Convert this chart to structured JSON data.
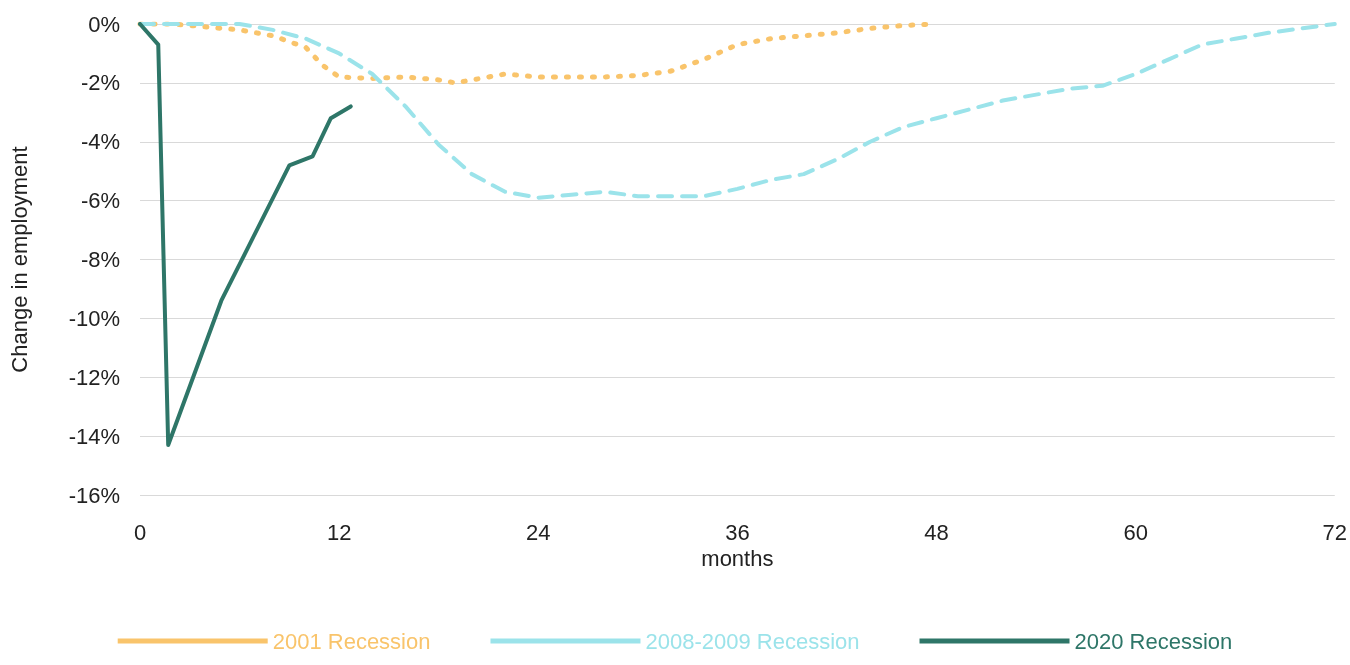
{
  "chart_data": {
    "type": "line",
    "xlabel": "months",
    "ylabel": "Change in employment",
    "xlim": [
      0,
      72
    ],
    "xticks": [
      0,
      12,
      24,
      36,
      48,
      60,
      72
    ],
    "ylim": [
      -16,
      0
    ],
    "yticks": [
      {
        "value": -16,
        "label": "-16%"
      },
      {
        "value": -14,
        "label": "-14%"
      },
      {
        "value": -12,
        "label": "-12%"
      },
      {
        "value": -10,
        "label": "-10%"
      },
      {
        "value": -8,
        "label": "-8%"
      },
      {
        "value": -6,
        "label": "-6%"
      },
      {
        "value": -4,
        "label": "-4%"
      },
      {
        "value": -2,
        "label": "-2%"
      },
      {
        "value": 0,
        "label": "0%"
      }
    ],
    "grid": "y",
    "legend": "bottom",
    "marker": "none",
    "series": [
      {
        "name": "2001 Recession",
        "color": "#f9c46b",
        "line_style": "dotted",
        "x": [
          0,
          2,
          4,
          6,
          8,
          10,
          11,
          12,
          14,
          16,
          18,
          19,
          20,
          21,
          22,
          24,
          26,
          28,
          30,
          32,
          34,
          36,
          38,
          40,
          42,
          44,
          46,
          48
        ],
        "values": [
          0,
          0,
          -0.1,
          -0.2,
          -0.4,
          -0.8,
          -1.4,
          -1.8,
          -1.85,
          -1.8,
          -1.9,
          -2.0,
          -1.9,
          -1.8,
          -1.7,
          -1.8,
          -1.8,
          -1.8,
          -1.75,
          -1.6,
          -1.2,
          -0.7,
          -0.5,
          -0.4,
          -0.3,
          -0.15,
          -0.05,
          0
        ]
      },
      {
        "name": "2008-2009 Recession",
        "color": "#9be3ea",
        "line_style": "dashed",
        "x": [
          0,
          2,
          4,
          6,
          8,
          10,
          12,
          14,
          16,
          18,
          20,
          22,
          24,
          26,
          28,
          30,
          32,
          34,
          36,
          38,
          40,
          42,
          44,
          46,
          48,
          50,
          52,
          54,
          56,
          58,
          60,
          62,
          64,
          66,
          68,
          70,
          72
        ],
        "values": [
          0,
          0,
          0,
          0,
          -0.2,
          -0.5,
          -1.0,
          -1.7,
          -2.8,
          -4.1,
          -5.1,
          -5.7,
          -5.9,
          -5.8,
          -5.7,
          -5.85,
          -5.85,
          -5.85,
          -5.6,
          -5.3,
          -5.1,
          -4.6,
          -4.0,
          -3.5,
          -3.2,
          -2.9,
          -2.6,
          -2.4,
          -2.2,
          -2.1,
          -1.7,
          -1.2,
          -0.7,
          -0.5,
          -0.3,
          -0.15,
          0
        ]
      },
      {
        "name": "2020 Recession",
        "color": "#2e7668",
        "line_style": "solid",
        "x": [
          0,
          1.1,
          1.7,
          4.9,
          9,
          10.4,
          11.5,
          12.7
        ],
        "values": [
          0,
          -0.7,
          -14.3,
          -9.4,
          -4.8,
          -4.5,
          -3.2,
          -2.8
        ]
      }
    ]
  }
}
